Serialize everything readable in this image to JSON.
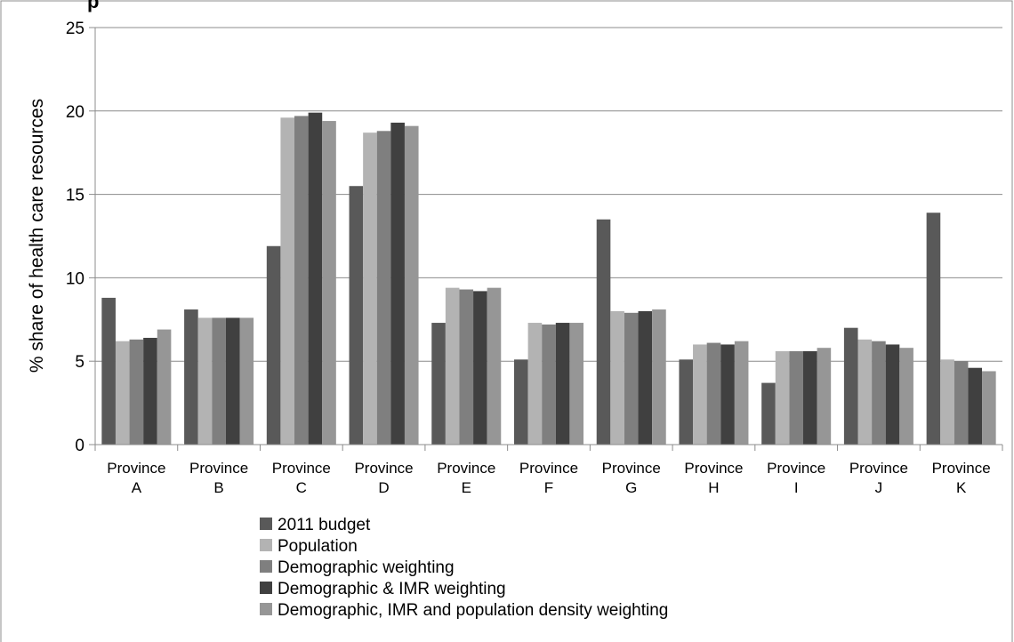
{
  "chart_data": {
    "type": "bar",
    "title": "",
    "xlabel": "",
    "ylabel": "% share of health care resources",
    "ylim": [
      0,
      25
    ],
    "y_ticks": [
      "0",
      "5",
      "10",
      "15",
      "20",
      "25"
    ],
    "y_tick_values": [
      0,
      5,
      10,
      15,
      20,
      25
    ],
    "grid": true,
    "legend_position": "bottom",
    "categories": [
      [
        "Province",
        "A"
      ],
      [
        "Province",
        "B"
      ],
      [
        "Province",
        "C"
      ],
      [
        "Province",
        "D"
      ],
      [
        "Province",
        "E"
      ],
      [
        "Province",
        "F"
      ],
      [
        "Province",
        "G"
      ],
      [
        "Province",
        "H"
      ],
      [
        "Province",
        "I"
      ],
      [
        "Province",
        "J"
      ],
      [
        "Province",
        "K"
      ]
    ],
    "series": [
      {
        "name": "2011 budget",
        "color": "#595959",
        "values": [
          8.8,
          8.1,
          11.9,
          15.5,
          7.3,
          5.1,
          13.5,
          5.1,
          3.7,
          7.0,
          13.9
        ]
      },
      {
        "name": "Population",
        "color": "#b3b3b3",
        "values": [
          6.2,
          7.6,
          19.6,
          18.7,
          9.4,
          7.3,
          8.0,
          6.0,
          5.6,
          6.3,
          5.1
        ]
      },
      {
        "name": "Demographic weighting",
        "color": "#7f7f7f",
        "values": [
          6.3,
          7.6,
          19.7,
          18.8,
          9.3,
          7.2,
          7.9,
          6.1,
          5.6,
          6.2,
          5.0
        ]
      },
      {
        "name": "Demographic & IMR weighting",
        "color": "#404040",
        "values": [
          6.4,
          7.6,
          19.9,
          19.3,
          9.2,
          7.3,
          8.0,
          6.0,
          5.6,
          6.0,
          4.6
        ]
      },
      {
        "name": "Demographic, IMR and population density weighting",
        "color": "#969696",
        "values": [
          6.9,
          7.6,
          19.4,
          19.1,
          9.4,
          7.3,
          8.1,
          6.2,
          5.8,
          5.8,
          4.4
        ]
      }
    ]
  }
}
